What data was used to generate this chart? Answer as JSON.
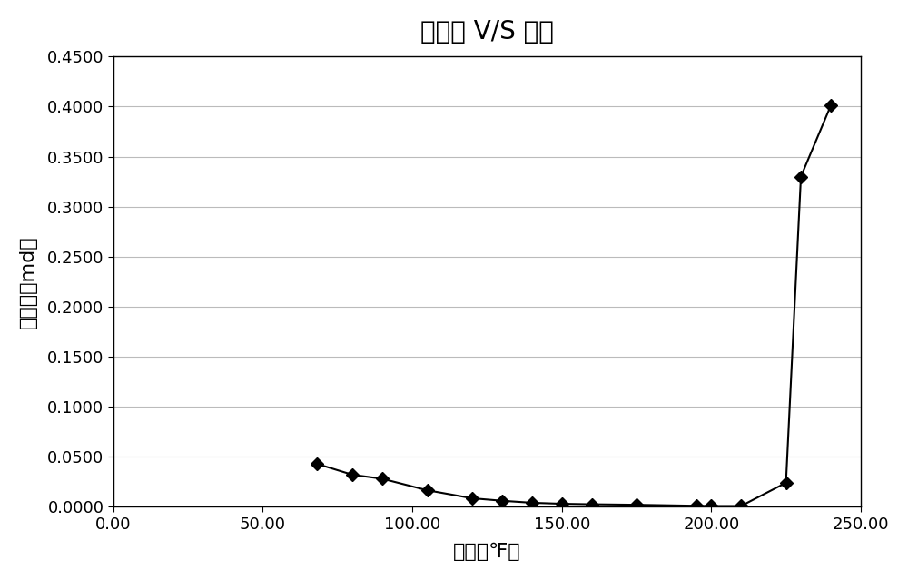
{
  "title": "渗透率 V/S 温度",
  "xlabel": "温度（℉）",
  "ylabel": "渗透率（md）",
  "x": [
    68,
    80,
    90,
    105,
    120,
    130,
    140,
    150,
    160,
    175,
    195,
    200,
    210,
    225,
    230,
    240
  ],
  "y": [
    0.043,
    0.032,
    0.028,
    0.0165,
    0.0085,
    0.006,
    0.004,
    0.003,
    0.0025,
    0.002,
    0.001,
    0.0008,
    0.0008,
    0.024,
    0.33,
    0.401
  ],
  "xlim": [
    0.0,
    250.0
  ],
  "ylim": [
    0.0,
    0.45
  ],
  "xticks": [
    0.0,
    50.0,
    100.0,
    150.0,
    200.0,
    250.0
  ],
  "yticks": [
    0.0,
    0.05,
    0.1,
    0.15,
    0.2,
    0.25,
    0.3,
    0.35,
    0.4,
    0.45
  ],
  "ytick_labels": [
    "0.0000",
    "0.0500",
    "0.1000",
    "0.1500",
    "0.2000",
    "0.2500",
    "0.3000",
    "0.3500",
    "0.4000",
    "0.4500"
  ],
  "xtick_labels": [
    "0.00",
    "50.00",
    "100.00",
    "150.00",
    "200.00",
    "250.00"
  ],
  "line_color": "#000000",
  "marker": "D",
  "marker_color": "#000000",
  "marker_size": 7,
  "line_width": 1.5,
  "background_color": "#ffffff",
  "grid_color": "#bbbbbb",
  "title_fontsize": 20,
  "label_fontsize": 16,
  "tick_fontsize": 13
}
